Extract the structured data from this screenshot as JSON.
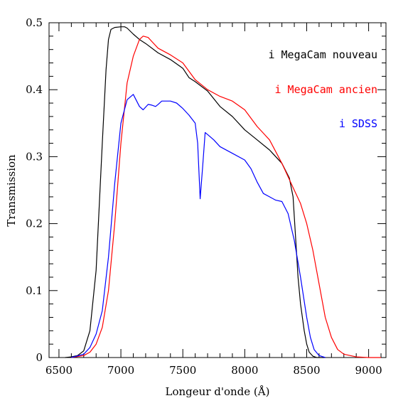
{
  "chart_data": {
    "type": "line",
    "title": "",
    "xlabel": "Longeur d'onde (Å)",
    "ylabel": "Transmission",
    "xlim": [
      6420,
      9140
    ],
    "ylim": [
      0,
      0.5
    ],
    "xticks": [
      6500,
      7000,
      7500,
      8000,
      8500,
      9000
    ],
    "xtick_labels": [
      "6500",
      "7000",
      "7500",
      "8000",
      "8500",
      "9000"
    ],
    "yticks": [
      0,
      0.1,
      0.2,
      0.3,
      0.4,
      0.5
    ],
    "ytick_labels": [
      "0",
      "0.1",
      "0.2",
      "0.3",
      "0.4",
      "0.5"
    ],
    "x_minor_step": 100,
    "y_minor_step": 0.02,
    "grid": false,
    "legend_position": "top-right",
    "series": [
      {
        "name": "i MegaCam nouveau",
        "color": "#000000",
        "x": [
          6550,
          6600,
          6650,
          6700,
          6750,
          6800,
          6850,
          6880,
          6900,
          6920,
          6950,
          7000,
          7030,
          7050,
          7100,
          7150,
          7200,
          7300,
          7400,
          7500,
          7550,
          7600,
          7700,
          7800,
          7900,
          8000,
          8100,
          8200,
          8300,
          8360,
          8390,
          8410,
          8430,
          8450,
          8480,
          8500,
          8520,
          8550,
          8580,
          8600,
          8650
        ],
        "y": [
          0.0,
          0.001,
          0.003,
          0.01,
          0.04,
          0.13,
          0.32,
          0.43,
          0.475,
          0.49,
          0.493,
          0.494,
          0.494,
          0.492,
          0.483,
          0.475,
          0.469,
          0.455,
          0.445,
          0.432,
          0.418,
          0.412,
          0.398,
          0.375,
          0.36,
          0.34,
          0.325,
          0.31,
          0.29,
          0.268,
          0.24,
          0.18,
          0.12,
          0.08,
          0.04,
          0.02,
          0.008,
          0.002,
          0.0,
          0.0,
          0.0
        ]
      },
      {
        "name": "i MegaCam ancien",
        "color": "#ff0000",
        "x": [
          6600,
          6700,
          6750,
          6800,
          6850,
          6900,
          6950,
          7000,
          7050,
          7100,
          7150,
          7180,
          7220,
          7250,
          7300,
          7400,
          7500,
          7600,
          7700,
          7800,
          7900,
          8000,
          8100,
          8150,
          8200,
          8300,
          8400,
          8450,
          8500,
          8550,
          8600,
          8650,
          8700,
          8750,
          8800,
          8900,
          9000,
          9100
        ],
        "y": [
          0.0,
          0.003,
          0.008,
          0.02,
          0.045,
          0.1,
          0.2,
          0.32,
          0.41,
          0.45,
          0.475,
          0.48,
          0.478,
          0.472,
          0.462,
          0.452,
          0.44,
          0.415,
          0.4,
          0.39,
          0.383,
          0.37,
          0.345,
          0.335,
          0.325,
          0.29,
          0.25,
          0.23,
          0.2,
          0.16,
          0.11,
          0.06,
          0.03,
          0.012,
          0.005,
          0.001,
          0.0,
          0.0
        ]
      },
      {
        "name": "i SDSS",
        "color": "#0000ff",
        "x": [
          6600,
          6700,
          6750,
          6800,
          6850,
          6900,
          6950,
          7000,
          7050,
          7100,
          7150,
          7180,
          7220,
          7250,
          7280,
          7300,
          7330,
          7400,
          7450,
          7500,
          7550,
          7600,
          7620,
          7640,
          7660,
          7680,
          7700,
          7750,
          7800,
          7900,
          8000,
          8050,
          8100,
          8150,
          8200,
          8250,
          8300,
          8350,
          8400,
          8450,
          8500,
          8530,
          8560,
          8600,
          8650
        ],
        "y": [
          0.0,
          0.005,
          0.015,
          0.035,
          0.07,
          0.15,
          0.26,
          0.35,
          0.385,
          0.393,
          0.375,
          0.37,
          0.378,
          0.377,
          0.375,
          0.378,
          0.383,
          0.383,
          0.38,
          0.372,
          0.362,
          0.35,
          0.32,
          0.237,
          0.285,
          0.336,
          0.333,
          0.325,
          0.315,
          0.305,
          0.295,
          0.282,
          0.262,
          0.245,
          0.24,
          0.235,
          0.233,
          0.215,
          0.175,
          0.12,
          0.06,
          0.03,
          0.012,
          0.003,
          0.0
        ]
      }
    ]
  }
}
